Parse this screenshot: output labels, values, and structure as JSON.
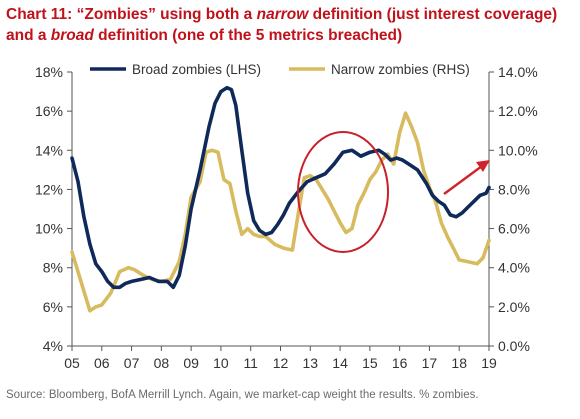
{
  "title": {
    "prefix": "Chart 11: “Zombies” using both a ",
    "em1": "narrow",
    "mid": " definition (just interest coverage) and a ",
    "em2": "broad",
    "suffix": " definition (one of the 5 metrics breached)"
  },
  "source": "Source: Bloomberg, BofA Merrill Lynch. Again, we market-cap weight the results. % zombies.",
  "colors": {
    "broad": "#0f2a5a",
    "narrow": "#d8bb5e",
    "ellipse": "#c8202a",
    "arrow": "#d1232a",
    "title": "#c0121b"
  },
  "chart_data": {
    "type": "line",
    "x_ticks": [
      "05",
      "06",
      "07",
      "08",
      "09",
      "10",
      "11",
      "12",
      "13",
      "14",
      "15",
      "16",
      "17",
      "18",
      "19"
    ],
    "y_left": {
      "ticks": [
        "4%",
        "6%",
        "8%",
        "10%",
        "12%",
        "14%",
        "16%",
        "18%"
      ],
      "range": [
        4,
        18
      ],
      "unit": "%"
    },
    "y_right": {
      "ticks": [
        "0.0%",
        "2.0%",
        "4.0%",
        "6.0%",
        "8.0%",
        "10.0%",
        "12.0%",
        "14.0%"
      ],
      "range": [
        0,
        14
      ],
      "unit": "%"
    },
    "series": [
      {
        "name": "Broad zombies (LHS)",
        "axis": "left",
        "x": [
          2005.0,
          2005.2,
          2005.4,
          2005.6,
          2005.8,
          2006.0,
          2006.2,
          2006.4,
          2006.6,
          2006.8,
          2007.0,
          2007.3,
          2007.6,
          2007.9,
          2008.2,
          2008.4,
          2008.6,
          2008.8,
          2009.0,
          2009.3,
          2009.6,
          2009.8,
          2010.0,
          2010.2,
          2010.35,
          2010.5,
          2010.7,
          2010.9,
          2011.1,
          2011.3,
          2011.5,
          2011.7,
          2011.9,
          2012.1,
          2012.3,
          2012.6,
          2012.9,
          2013.2,
          2013.5,
          2013.8,
          2014.1,
          2014.4,
          2014.7,
          2015.0,
          2015.3,
          2015.5,
          2015.7,
          2015.9,
          2016.1,
          2016.3,
          2016.6,
          2016.9,
          2017.1,
          2017.3,
          2017.5,
          2017.7,
          2017.9,
          2018.1,
          2018.3,
          2018.5,
          2018.7,
          2018.9,
          2019.0
        ],
        "y": [
          13.6,
          12.4,
          10.6,
          9.2,
          8.2,
          7.8,
          7.3,
          7.0,
          7.0,
          7.2,
          7.3,
          7.4,
          7.5,
          7.3,
          7.3,
          7.0,
          7.6,
          9.1,
          11.0,
          13.0,
          15.2,
          16.4,
          17.0,
          17.2,
          17.1,
          16.3,
          14.0,
          11.8,
          10.4,
          9.9,
          9.7,
          9.8,
          10.2,
          10.7,
          11.3,
          11.9,
          12.4,
          12.6,
          12.8,
          13.3,
          13.9,
          14.0,
          13.7,
          13.9,
          14.0,
          13.8,
          13.5,
          13.6,
          13.5,
          13.3,
          13.0,
          12.3,
          11.7,
          11.4,
          11.2,
          10.7,
          10.6,
          10.8,
          11.1,
          11.4,
          11.7,
          11.8,
          12.1
        ]
      },
      {
        "name": "Narrow zombies (RHS)",
        "axis": "right",
        "x": [
          2005.0,
          2005.2,
          2005.4,
          2005.6,
          2005.8,
          2006.0,
          2006.3,
          2006.6,
          2006.9,
          2007.1,
          2007.4,
          2007.7,
          2008.0,
          2008.3,
          2008.6,
          2008.8,
          2009.0,
          2009.3,
          2009.5,
          2009.7,
          2009.9,
          2010.1,
          2010.3,
          2010.5,
          2010.7,
          2010.9,
          2011.1,
          2011.3,
          2011.5,
          2011.8,
          2012.1,
          2012.4,
          2012.6,
          2012.8,
          2013.0,
          2013.2,
          2013.4,
          2013.6,
          2013.8,
          2014.0,
          2014.2,
          2014.4,
          2014.6,
          2014.8,
          2015.0,
          2015.2,
          2015.4,
          2015.6,
          2015.8,
          2016.0,
          2016.2,
          2016.4,
          2016.6,
          2016.8,
          2017.0,
          2017.2,
          2017.4,
          2017.6,
          2017.8,
          2018.0,
          2018.3,
          2018.6,
          2018.8,
          2019.0
        ],
        "y": [
          4.8,
          3.8,
          2.8,
          1.8,
          2.0,
          2.1,
          2.7,
          3.8,
          4.0,
          3.9,
          3.6,
          3.4,
          3.3,
          3.4,
          4.3,
          5.7,
          7.6,
          8.4,
          9.9,
          10.0,
          9.9,
          8.5,
          8.3,
          6.9,
          5.7,
          6.0,
          5.7,
          5.6,
          5.6,
          5.2,
          5.0,
          4.9,
          6.8,
          8.6,
          8.7,
          8.5,
          8.0,
          7.5,
          6.9,
          6.3,
          5.8,
          6.0,
          7.2,
          7.8,
          8.5,
          8.9,
          9.5,
          9.8,
          9.3,
          10.9,
          11.9,
          11.2,
          10.4,
          9.0,
          8.1,
          7.4,
          6.3,
          5.6,
          5.0,
          4.4,
          4.3,
          4.2,
          4.5,
          5.4
        ]
      }
    ],
    "legend_position": "top",
    "grid": false,
    "annotations": [
      "red ellipse around 2013-2015 divergence",
      "red upward arrow near 2018-2019"
    ]
  }
}
